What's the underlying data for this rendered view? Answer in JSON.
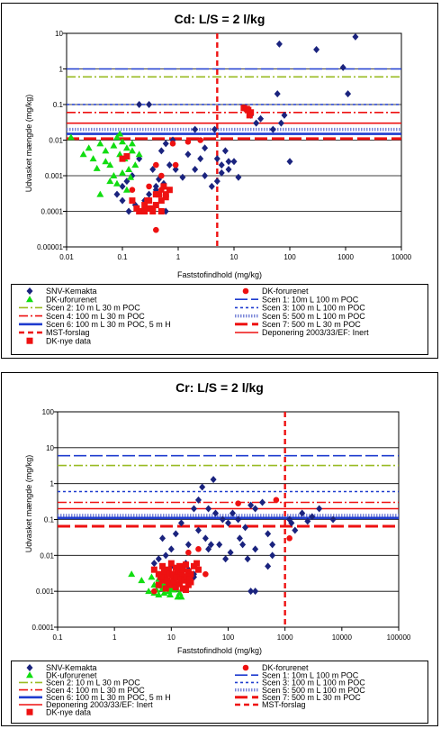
{
  "chart_data": [
    {
      "type": "scatter",
      "title": "Cd: L/S = 2 l/kg",
      "xlabel": "Faststofindhold (mg/kg)",
      "ylabel": "Udvasket mængde (mg/kg)",
      "xscale": "log",
      "yscale": "log",
      "xlim": [
        0.01,
        10000
      ],
      "ylim": [
        1e-05,
        10
      ],
      "xticks": [
        "0.01",
        "0.1",
        "1",
        "10",
        "100",
        "1000",
        "10000"
      ],
      "yticks": [
        "0.00001",
        "0.0001",
        "0.001",
        "0.01",
        "0.1",
        "1",
        "10"
      ],
      "grid": "horizontal",
      "hlines": [
        {
          "name": "Scen 1: 10m L 100 m POC",
          "y": 1.0,
          "color": "#1f3ccf",
          "style": "longdash"
        },
        {
          "name": "Scen 2: 10 m L 30 m POC",
          "y": 0.6,
          "color": "#99bb22",
          "style": "dashdot"
        },
        {
          "name": "Scen 3: 100 m L 100 m POC",
          "y": 0.1,
          "color": "#1f3ccf",
          "style": "dot"
        },
        {
          "name": "Scen 4: 100 m L 30 m POC",
          "y": 0.06,
          "color": "#ee1111",
          "style": "dashdot"
        },
        {
          "name": "Scen 5: 500 m L 100 m POC",
          "y": 0.02,
          "color": "#7a86d8",
          "style": "dotted-thick"
        },
        {
          "name": "Deponering 2003/33/EF: Inert",
          "y": 0.03,
          "color": "#ee1111",
          "style": "solid"
        },
        {
          "name": "Scen 6: 100 m L 30 m POC, 5 m H",
          "y": 0.015,
          "color": "#1f3ccf",
          "style": "solid-thick"
        },
        {
          "name": "Scen 7: 500 m L 30 m POC",
          "y": 0.011,
          "color": "#ee1111",
          "style": "longdash-thick"
        }
      ],
      "vlines": [
        {
          "name": "MST-forslag",
          "x": 5,
          "color": "#ee1111",
          "style": "dash-thick"
        }
      ],
      "series": [
        {
          "name": "SNV-Kemakta",
          "marker": "diamond",
          "color": "#1a237e",
          "x": [
            1500,
            300,
            65,
            900,
            1100,
            8,
            2,
            0.2,
            0.3,
            20,
            25,
            30,
            50,
            60,
            70,
            80,
            5,
            6,
            7,
            0.8,
            0.6,
            0.5,
            1.5,
            2.5,
            3,
            0.4,
            0.3,
            0.25,
            0.7,
            0.15,
            0.12,
            0.1,
            0.2,
            0.35,
            0.45,
            0.55,
            0.9,
            1.2,
            4,
            5,
            6,
            8,
            10,
            12,
            4.5,
            0.08,
            0.1,
            0.13,
            0.17,
            3,
            2,
            0.6,
            100,
            0.4
          ],
          "y": [
            8,
            3.5,
            5,
            1.1,
            0.2,
            0.0025,
            0.02,
            0.1,
            0.1,
            0.05,
            0.03,
            0.04,
            0.02,
            0.2,
            0.03,
            0.05,
            0.003,
            0.002,
            0.005,
            0.01,
            0.008,
            0.005,
            0.004,
            0.003,
            0.001,
            0.0005,
            0.0003,
            0.0002,
            0.002,
            0.001,
            0.0007,
            0.0005,
            0.003,
            0.0015,
            0.0008,
            0.0006,
            0.0015,
            0.0009,
            0.0005,
            0.0007,
            0.0012,
            0.0015,
            0.0025,
            0.0009,
            0.02,
            0.0003,
            0.0002,
            0.0001,
            0.00015,
            0.006,
            0.0015,
            0.0001,
            0.0025,
            0.0004
          ]
        },
        {
          "name": "DK-uforurenet",
          "marker": "triangle",
          "color": "#11dd11",
          "x": [
            0.012,
            0.02,
            0.025,
            0.03,
            0.04,
            0.05,
            0.06,
            0.07,
            0.08,
            0.09,
            0.1,
            0.11,
            0.12,
            0.13,
            0.15,
            0.17,
            0.2,
            0.09,
            0.07,
            0.05,
            0.06,
            0.1,
            0.12,
            0.14,
            0.08,
            0.04,
            0.035,
            0.15
          ],
          "y": [
            0.012,
            0.004,
            0.006,
            0.003,
            0.008,
            0.005,
            0.002,
            0.007,
            0.012,
            0.004,
            0.009,
            0.003,
            0.006,
            0.0015,
            0.005,
            0.002,
            0.004,
            0.015,
            0.001,
            0.0025,
            0.0007,
            0.0012,
            0.0004,
            0.0009,
            0.0006,
            0.0003,
            0.0016,
            0.008
          ]
        },
        {
          "name": "DK-forurenet",
          "marker": "circle",
          "color": "#ee1111",
          "x": [
            0.5,
            0.8,
            1.5,
            2.5,
            0.9,
            0.15,
            0.3,
            0.4,
            0.5,
            0.25,
            0.4
          ],
          "y": [
            0.0004,
            0.008,
            0.009,
            0.01,
            0.002,
            0.0004,
            0.0005,
            0.002,
            0.001,
            0.0001,
            3e-05
          ]
        },
        {
          "name": "DK-nye data",
          "marker": "square",
          "color": "#ee1111",
          "x": [
            0.1,
            0.15,
            0.18,
            0.2,
            0.22,
            0.25,
            0.28,
            0.3,
            0.35,
            0.4,
            0.45,
            0.5,
            0.55,
            0.6,
            0.7,
            0.4,
            0.3,
            0.5,
            0.25,
            0.6,
            15,
            18,
            20,
            17,
            19,
            0.12,
            0.35
          ],
          "y": [
            0.003,
            0.0002,
            0.00012,
            0.0001,
            0.0001,
            0.00015,
            0.0002,
            0.00012,
            0.0001,
            0.00015,
            0.0003,
            0.0002,
            0.0005,
            0.00025,
            0.0004,
            0.0003,
            0.0002,
            0.0001,
            0.0001,
            0.0003,
            0.08,
            0.07,
            0.06,
            0.075,
            0.05,
            0.0035,
            0.00012
          ]
        }
      ],
      "legend": [
        "SNV-Kemakta",
        "DK-forurenet",
        "DK-uforurenet",
        "Scen 1: 10m L 100 m POC",
        "Scen 2: 10 m L 30 m POC",
        "Scen 3: 100 m L 100 m POC",
        "Scen 4: 100 m L 30 m POC",
        "Scen 5: 500 m L 100 m POC",
        "Scen 6: 100 m L 30 m POC, 5 m H",
        "Scen 7: 500 m L 30 m POC",
        "MST-forslag",
        "Deponering 2003/33/EF: Inert",
        "DK-nye data"
      ]
    },
    {
      "type": "scatter",
      "title": "Cr: L/S = 2 l/kg",
      "xlabel": "Faststofindhold (mg/kg)",
      "ylabel": "Udvasket mængde (mg/kg)",
      "xscale": "log",
      "yscale": "log",
      "xlim": [
        0.1,
        100000
      ],
      "ylim": [
        0.0001,
        100
      ],
      "xticks": [
        "0.1",
        "1",
        "10",
        "100",
        "1000",
        "10000",
        "100000"
      ],
      "yticks": [
        "0.0001",
        "0.001",
        "0.01",
        "0.1",
        "1",
        "10",
        "100"
      ],
      "grid": "horizontal",
      "hlines": [
        {
          "name": "Scen 1: 10m L 100 m POC",
          "y": 6,
          "color": "#1f3ccf",
          "style": "longdash"
        },
        {
          "name": "Scen 2: 10 m L 30 m POC",
          "y": 3.2,
          "color": "#99bb22",
          "style": "dashdot"
        },
        {
          "name": "Scen 3: 100 m L 100 m POC",
          "y": 0.6,
          "color": "#1f3ccf",
          "style": "dot"
        },
        {
          "name": "Scen 4: 100 m L 30 m POC",
          "y": 0.3,
          "color": "#ee1111",
          "style": "dashdot"
        },
        {
          "name": "Deponering 2003/33/EF: Inert",
          "y": 0.2,
          "color": "#ee1111",
          "style": "solid"
        },
        {
          "name": "Scen 5: 500 m L 100 m POC",
          "y": 0.13,
          "color": "#7a86d8",
          "style": "dotted-thick"
        },
        {
          "name": "Scen 6: 100 m L 30 m POC, 5 m H",
          "y": 0.11,
          "color": "#1f3ccf",
          "style": "solid-thick"
        },
        {
          "name": "Scen 7: 500 m L 30 m POC",
          "y": 0.065,
          "color": "#ee1111",
          "style": "longdash-thick"
        }
      ],
      "vlines": [
        {
          "name": "MST-forslag",
          "x": 1000,
          "color": "#ee1111",
          "style": "dash-thick"
        }
      ],
      "series": [
        {
          "name": "SNV-Kemakta",
          "marker": "diamond",
          "color": "#1a237e",
          "x": [
            55,
            35,
            30,
            25,
            45,
            60,
            80,
            100,
            120,
            150,
            200,
            250,
            300,
            400,
            500,
            600,
            2000,
            3000,
            2500,
            7000,
            4000,
            1500,
            250,
            300,
            30,
            40,
            50,
            20,
            15,
            12,
            10,
            8,
            7,
            6,
            5,
            20,
            25,
            45,
            70,
            90,
            110,
            160,
            180,
            220,
            600,
            500,
            10,
            12,
            7,
            8,
            6,
            15,
            18,
            25,
            300,
            1200,
            1300
          ],
          "y": [
            1.3,
            0.8,
            0.35,
            0.2,
            0.2,
            0.15,
            0.1,
            0.08,
            0.15,
            0.1,
            0.06,
            0.25,
            0.2,
            0.3,
            0.04,
            0.02,
            0.15,
            0.12,
            0.09,
            0.1,
            0.2,
            0.05,
            0.001,
            0.001,
            0.05,
            0.03,
            0.02,
            0.02,
            0.08,
            0.04,
            0.015,
            0.01,
            0.03,
            0.008,
            0.006,
            0.004,
            0.003,
            0.015,
            0.02,
            0.008,
            0.012,
            0.03,
            0.02,
            0.008,
            0.01,
            0.005,
            0.005,
            0.003,
            0.002,
            0.002,
            0.0015,
            0.002,
            0.006,
            0.0025,
            0.015,
            0.1,
            0.08
          ]
        },
        {
          "name": "DK-uforurenet",
          "marker": "triangle",
          "color": "#11dd11",
          "x": [
            2,
            3,
            4,
            5,
            6,
            7,
            8,
            9,
            10,
            12,
            14,
            15,
            4.5,
            5.5,
            6.5,
            7.5,
            8.5,
            9.5,
            11,
            13,
            6,
            8,
            10,
            5,
            7
          ],
          "y": [
            0.003,
            0.002,
            0.001,
            0.0015,
            0.0008,
            0.0012,
            0.002,
            0.001,
            0.0018,
            0.0012,
            0.0009,
            0.0007,
            0.0025,
            0.0011,
            0.0016,
            0.0009,
            0.0013,
            0.0008,
            0.0011,
            0.0007,
            0.0022,
            0.0017,
            0.0012,
            0.0009,
            0.0014
          ]
        },
        {
          "name": "DK-forurenet",
          "marker": "circle",
          "color": "#ee1111",
          "x": [
            700,
            150,
            20,
            30,
            1200,
            8,
            12,
            5,
            40
          ],
          "y": [
            0.35,
            0.28,
            0.012,
            0.015,
            0.03,
            0.002,
            0.0015,
            0.001,
            0.003
          ]
        },
        {
          "name": "DK-nye data",
          "marker": "square",
          "color": "#ee1111",
          "x": [
            5,
            6,
            7,
            8,
            9,
            10,
            11,
            12,
            13,
            14,
            15,
            16,
            18,
            20,
            22,
            25,
            28,
            30,
            6,
            7,
            8,
            9,
            10,
            11,
            12,
            14,
            16,
            18,
            20,
            22,
            6.5,
            7.5,
            8.5,
            9.5,
            10.5,
            12.5,
            15,
            17,
            19,
            21
          ],
          "y": [
            0.004,
            0.003,
            0.005,
            0.0025,
            0.004,
            0.006,
            0.003,
            0.0045,
            0.0035,
            0.005,
            0.003,
            0.004,
            0.0055,
            0.0035,
            0.003,
            0.005,
            0.006,
            0.004,
            0.0015,
            0.002,
            0.0012,
            0.0018,
            0.0015,
            0.002,
            0.0013,
            0.0016,
            0.0012,
            0.0011,
            0.0015,
            0.0018,
            0.0025,
            0.0035,
            0.002,
            0.003,
            0.0028,
            0.0024,
            0.0022,
            0.002,
            0.0026,
            0.0021
          ]
        }
      ],
      "legend": [
        "SNV-Kemakta",
        "DK-forurenet",
        "DK-uforurenet",
        "Scen 1: 10m L 100 m POC",
        "Scen 2: 10 m L 30 m POC",
        "Scen 3: 100 m L 100 m POC",
        "Scen 4: 100 m L 30 m POC",
        "Scen 5: 500 m L 100 m POC",
        "Scen 6: 100 m L 30 m POC, 5 m H",
        "Scen 7: 500 m L 30 m POC",
        "Deponering 2003/33/EF: Inert",
        "MST-forslag",
        "DK-nye data"
      ]
    }
  ]
}
